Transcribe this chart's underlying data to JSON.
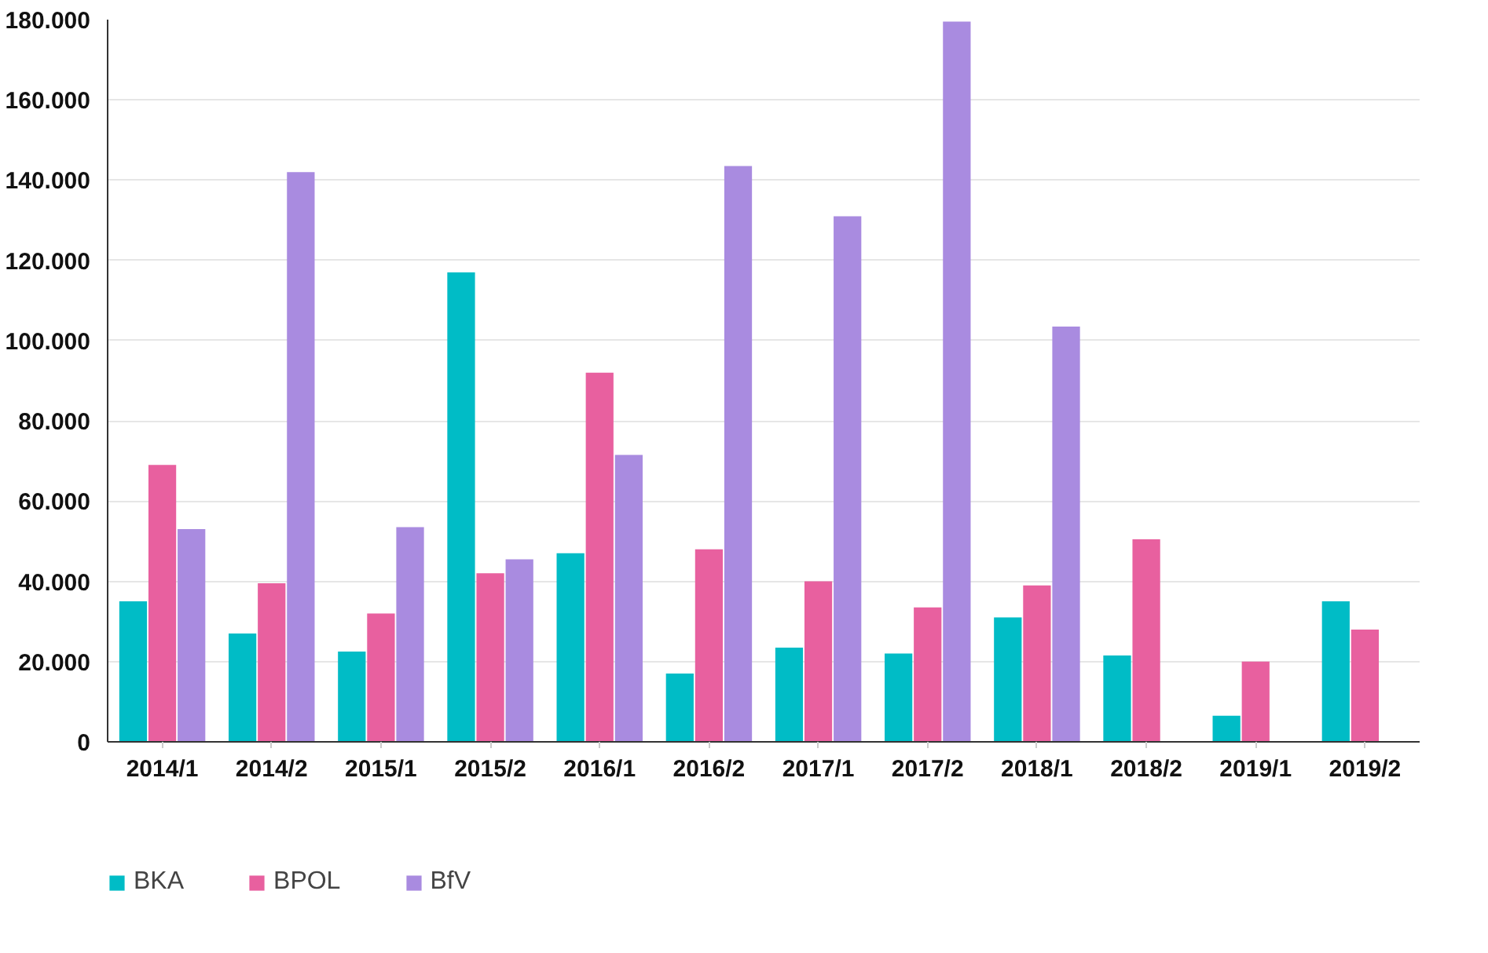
{
  "chart_data": {
    "type": "bar",
    "categories": [
      "2014/1",
      "2014/2",
      "2015/1",
      "2015/2",
      "2016/1",
      "2016/2",
      "2017/1",
      "2017/2",
      "2018/1",
      "2018/2",
      "2019/1",
      "2019/2"
    ],
    "series": [
      {
        "name": "BKA",
        "color": "#00bcc6",
        "values": [
          35000,
          27000,
          22500,
          117000,
          47000,
          17000,
          23500,
          22000,
          31000,
          21500,
          6500,
          35000
        ]
      },
      {
        "name": "BPOL",
        "color": "#e8609f",
        "values": [
          69000,
          39500,
          32000,
          42000,
          92000,
          48000,
          40000,
          33500,
          39000,
          50500,
          20000,
          28000
        ]
      },
      {
        "name": "BfV",
        "color": "#a98be0",
        "values": [
          53000,
          142000,
          53500,
          45500,
          71500,
          143500,
          131000,
          179500,
          103500,
          null,
          null,
          null
        ]
      }
    ],
    "ylim": [
      0,
      180000
    ],
    "yticks": [
      0,
      {
        "value": 20000,
        "label": "20.000"
      },
      {
        "value": 40000,
        "label": "40.000"
      },
      {
        "value": 60000,
        "label": "60.000"
      },
      {
        "value": 80000,
        "label": "80.000"
      },
      {
        "value": 100000,
        "label": "100.000"
      },
      {
        "value": 120000,
        "label": "120.000"
      },
      {
        "value": 140000,
        "label": "140.000"
      },
      {
        "value": 160000,
        "label": "160.000"
      },
      {
        "value": 180000,
        "label": "180.000"
      }
    ],
    "grid": "y",
    "legend": "bottom left"
  }
}
